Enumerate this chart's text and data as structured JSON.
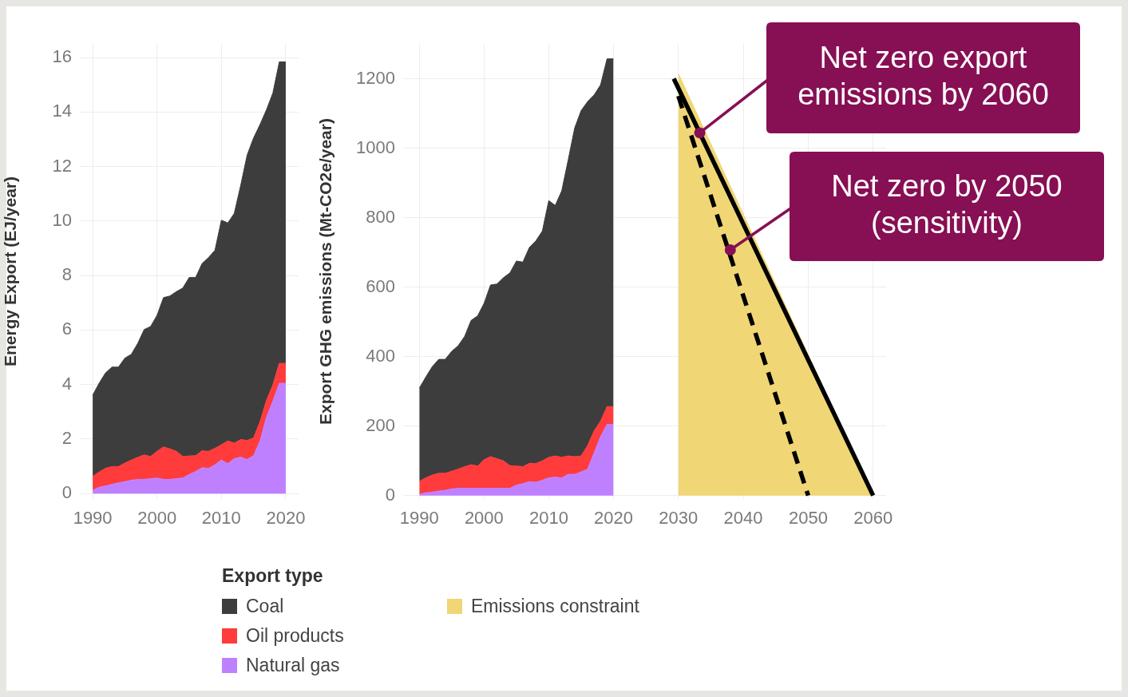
{
  "chart_data": [
    {
      "type": "area",
      "stacked": true,
      "ylabel": "Energy Export (EJ/year)",
      "x": [
        1990,
        1991,
        1992,
        1993,
        1994,
        1995,
        1996,
        1997,
        1998,
        1999,
        2000,
        2001,
        2002,
        2003,
        2004,
        2005,
        2006,
        2007,
        2008,
        2009,
        2010,
        2011,
        2012,
        2013,
        2014,
        2015,
        2016,
        2017,
        2018,
        2019,
        2020
      ],
      "series": [
        {
          "name": "Natural gas",
          "color": "#bf80ff",
          "values": [
            0.12,
            0.23,
            0.28,
            0.34,
            0.39,
            0.44,
            0.49,
            0.52,
            0.52,
            0.55,
            0.57,
            0.52,
            0.52,
            0.55,
            0.57,
            0.7,
            0.81,
            0.95,
            0.92,
            1.06,
            1.23,
            1.1,
            1.28,
            1.34,
            1.25,
            1.39,
            1.93,
            2.8,
            3.39,
            4.05,
            4.05
          ]
        },
        {
          "name": "Oil products",
          "color": "#ff3b3b",
          "values": [
            0.51,
            0.56,
            0.65,
            0.65,
            0.6,
            0.68,
            0.74,
            0.81,
            0.9,
            0.81,
            0.98,
            1.19,
            1.12,
            1.0,
            0.79,
            0.68,
            0.58,
            0.62,
            0.63,
            0.6,
            0.56,
            0.83,
            0.57,
            0.64,
            0.7,
            0.65,
            0.71,
            0.62,
            0.6,
            0.73,
            0.73
          ]
        },
        {
          "name": "Coal",
          "color": "#3d3d3d",
          "values": [
            2.98,
            3.26,
            3.5,
            3.65,
            3.65,
            3.85,
            3.88,
            4.18,
            4.6,
            4.77,
            4.99,
            5.48,
            5.61,
            5.86,
            6.18,
            6.55,
            6.54,
            6.87,
            7.11,
            7.27,
            8.24,
            8.0,
            8.43,
            9.33,
            10.47,
            11.01,
            10.9,
            10.66,
            10.71,
            11.06,
            11.06
          ]
        }
      ],
      "xlim": [
        1988,
        2022
      ],
      "xticks": [
        1990,
        2000,
        2010,
        2020
      ],
      "ylim": [
        -0.2,
        16.5
      ],
      "yticks": [
        0,
        2,
        4,
        6,
        8,
        10,
        12,
        14,
        16
      ],
      "grid": true,
      "legend": "bottom"
    },
    {
      "type": "area",
      "stacked": true,
      "ylabel": "Export GHG emissions (Mt-CO2e/year)",
      "legend_title": "Export type",
      "x": [
        1990,
        1991,
        1992,
        1993,
        1994,
        1995,
        1996,
        1997,
        1998,
        1999,
        2000,
        2001,
        2002,
        2003,
        2004,
        2005,
        2006,
        2007,
        2008,
        2009,
        2010,
        2011,
        2012,
        2013,
        2014,
        2015,
        2016,
        2017,
        2018,
        2019,
        2020
      ],
      "series": [
        {
          "name": "Natural gas",
          "color": "#bf80ff",
          "values": [
            4,
            8,
            10,
            13,
            15,
            19,
            21,
            21,
            21,
            21,
            21,
            21,
            21,
            21,
            21,
            30,
            34,
            40,
            38,
            44,
            51,
            53,
            51,
            61,
            61,
            68,
            76,
            123,
            170,
            205,
            205
          ]
        },
        {
          "name": "Oil products",
          "color": "#ff3b3b",
          "values": [
            37,
            43,
            49,
            51,
            49,
            51,
            55,
            62,
            68,
            64,
            82,
            91,
            85,
            79,
            65,
            55,
            49,
            53,
            54,
            56,
            59,
            61,
            59,
            53,
            51,
            46,
            68,
            63,
            44,
            51,
            51
          ]
        },
        {
          "name": "Coal",
          "color": "#3d3d3d",
          "values": [
            268,
            290,
            312,
            328,
            328,
            345,
            355,
            375,
            415,
            432,
            450,
            494,
            503,
            527,
            555,
            590,
            589,
            621,
            641,
            661,
            739,
            721,
            767,
            852,
            946,
            994,
            990,
            967,
            968,
            1001,
            1001
          ]
        }
      ],
      "xlim": [
        1987.5,
        2024.5
      ],
      "xticks": [
        1990,
        2000,
        2010,
        2020
      ],
      "ylim": [
        -10,
        1300
      ],
      "yticks": [
        0,
        200,
        400,
        600,
        800,
        1000,
        1200
      ],
      "grid": true,
      "legend": "bottom"
    },
    {
      "type": "area",
      "series": [
        {
          "name": "Emissions constraint",
          "color": "#f0d675",
          "x": [
            2030,
            2060
          ],
          "values": [
            1215,
            0
          ]
        },
        {
          "color": "#000000",
          "type": "line",
          "line_style": "solid",
          "x": [
            2029.3,
            2060
          ],
          "values": [
            1200,
            0
          ]
        },
        {
          "color": "#000000",
          "type": "line",
          "line_style": "dashed",
          "x": [
            2030,
            2050
          ],
          "values": [
            1150,
            0
          ]
        }
      ],
      "annotations": [
        {
          "text": "Net zero export emissions by 2060",
          "x": 2033.3,
          "y": 1044
        },
        {
          "text": "Net zero by 2050 (sensitivity)",
          "x": 2038,
          "y": 707
        }
      ],
      "xlim": [
        2024.5,
        2062
      ],
      "xticks": [
        2030,
        2040,
        2050,
        2060
      ],
      "ylim": [
        -10,
        1300
      ],
      "yticks": [
        0,
        200,
        400,
        600,
        800,
        1000,
        1200
      ],
      "tick_labels": "x",
      "grid": true,
      "legend": "bottom"
    }
  ]
}
